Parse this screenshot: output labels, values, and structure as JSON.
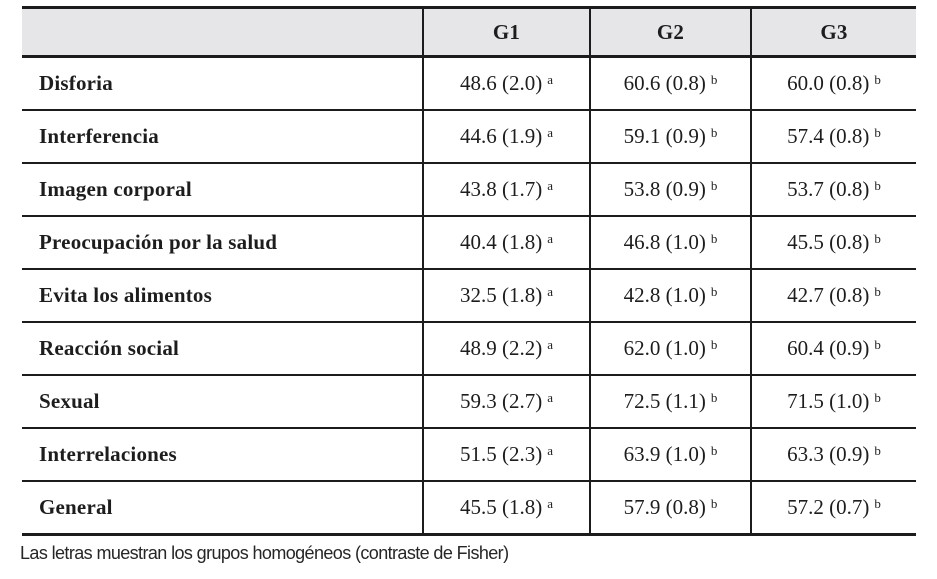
{
  "colors": {
    "header_bg": "#e6e6e8",
    "border": "#1c1c1c",
    "text": "#1d1d1d"
  },
  "page": {
    "footnote": "Las letras muestran los grupos homogéneos (contraste de Fisher)"
  },
  "table": {
    "header": {
      "label_col": "",
      "cols": [
        "G1",
        "G2",
        "G3"
      ]
    },
    "rows": [
      {
        "label": "Disforia",
        "g1": {
          "v": "48.6 (2.0)",
          "s": "a"
        },
        "g2": {
          "v": "60.6 (0.8)",
          "s": "b"
        },
        "g3": {
          "v": "60.0 (0.8)",
          "s": "b"
        }
      },
      {
        "label": "Interferencia",
        "g1": {
          "v": "44.6 (1.9)",
          "s": "a"
        },
        "g2": {
          "v": "59.1 (0.9)",
          "s": "b"
        },
        "g3": {
          "v": "57.4 (0.8)",
          "s": "b"
        }
      },
      {
        "label": "Imagen corporal",
        "g1": {
          "v": "43.8 (1.7)",
          "s": "a"
        },
        "g2": {
          "v": "53.8 (0.9)",
          "s": "b"
        },
        "g3": {
          "v": "53.7 (0.8)",
          "s": "b"
        }
      },
      {
        "label": "Preocupación por la salud",
        "g1": {
          "v": "40.4 (1.8)",
          "s": "a"
        },
        "g2": {
          "v": "46.8 (1.0)",
          "s": "b"
        },
        "g3": {
          "v": "45.5 (0.8)",
          "s": "b"
        }
      },
      {
        "label": "Evita los alimentos",
        "g1": {
          "v": "32.5 (1.8)",
          "s": "a"
        },
        "g2": {
          "v": "42.8 (1.0)",
          "s": "b"
        },
        "g3": {
          "v": "42.7 (0.8)",
          "s": "b"
        }
      },
      {
        "label": "Reacción social",
        "g1": {
          "v": "48.9 (2.2)",
          "s": "a"
        },
        "g2": {
          "v": "62.0 (1.0)",
          "s": "b"
        },
        "g3": {
          "v": "60.4 (0.9)",
          "s": "b"
        }
      },
      {
        "label": "Sexual",
        "g1": {
          "v": "59.3 (2.7)",
          "s": "a"
        },
        "g2": {
          "v": "72.5 (1.1)",
          "s": "b"
        },
        "g3": {
          "v": "71.5 (1.0)",
          "s": "b"
        }
      },
      {
        "label": "Interrelaciones",
        "g1": {
          "v": "51.5 (2.3)",
          "s": "a"
        },
        "g2": {
          "v": "63.9 (1.0)",
          "s": "b"
        },
        "g3": {
          "v": "63.3 (0.9)",
          "s": "b"
        }
      },
      {
        "label": "General",
        "g1": {
          "v": "45.5 (1.8)",
          "s": "a"
        },
        "g2": {
          "v": "57.9 (0.8)",
          "s": "b"
        },
        "g3": {
          "v": "57.2 (0.7)",
          "s": "b"
        }
      }
    ]
  }
}
